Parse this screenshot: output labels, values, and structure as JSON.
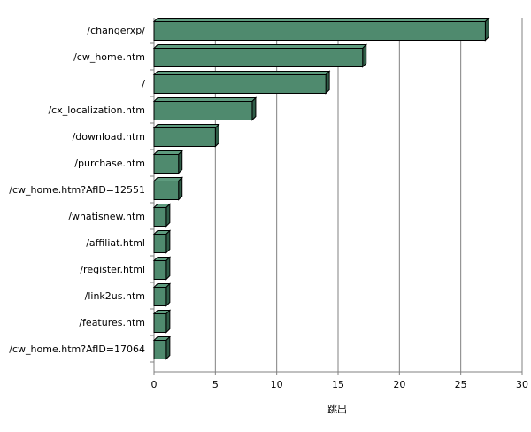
{
  "chart_data": {
    "type": "bar",
    "orientation": "horizontal",
    "categories": [
      "/changerxp/",
      "/cw_home.htm",
      "/",
      "/cx_localization.htm",
      "/download.htm",
      "/purchase.htm",
      "/cw_home.htm?AfID=12551",
      "/whatisnew.htm",
      "/affiliat.html",
      "/register.html",
      "/link2us.htm",
      "/features.htm",
      "/cw_home.htm?AfID=17064"
    ],
    "values": [
      27,
      17,
      14,
      8,
      5,
      2,
      2,
      1,
      1,
      1,
      1,
      1,
      1
    ],
    "xlabel": "跳出",
    "ylabel": "",
    "xlim": [
      0,
      30
    ],
    "xticks": [
      0,
      5,
      10,
      15,
      20,
      25,
      30
    ],
    "grid": true,
    "colors": {
      "bar_front": "#4f8a6e",
      "bar_top": "#5e9b7e",
      "bar_side": "#2f5c47",
      "bar_edge": "#000000",
      "grid": "#808080",
      "axis": "#808080"
    }
  }
}
